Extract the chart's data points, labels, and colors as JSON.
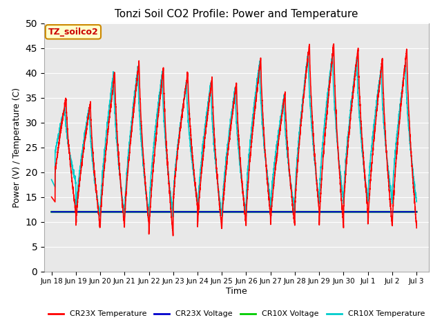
{
  "title": "Tonzi Soil CO2 Profile: Power and Temperature",
  "xlabel": "Time",
  "ylabel": "Power (V) / Temperature (C)",
  "ylim": [
    0,
    50
  ],
  "yticks": [
    0,
    5,
    10,
    15,
    20,
    25,
    30,
    35,
    40,
    45,
    50
  ],
  "plot_bg_color": "#e8e8e8",
  "annotation_text": "TZ_soilco2",
  "annotation_bg": "#ffffcc",
  "annotation_border": "#cc8800",
  "legend_items": [
    {
      "label": "CR23X Temperature",
      "color": "#ff0000"
    },
    {
      "label": "CR23X Voltage",
      "color": "#0000cc"
    },
    {
      "label": "CR10X Voltage",
      "color": "#00cc00"
    },
    {
      "label": "CR10X Temperature",
      "color": "#00cccc"
    }
  ],
  "cr23x_voltage_value": 12.0,
  "cr10x_voltage_value": 12.0,
  "num_days": 15,
  "tick_labels": [
    "Jun 18",
    "Jun 19",
    "Jun 20",
    "Jun 21",
    "Jun 22",
    "Jun 23",
    "Jun 24",
    "Jun 25",
    "Jun 26",
    "Jun 27",
    "Jun 28",
    "Jun 29",
    "Jun 30",
    "Jul 1",
    "Jul 2",
    "Jul 3"
  ]
}
